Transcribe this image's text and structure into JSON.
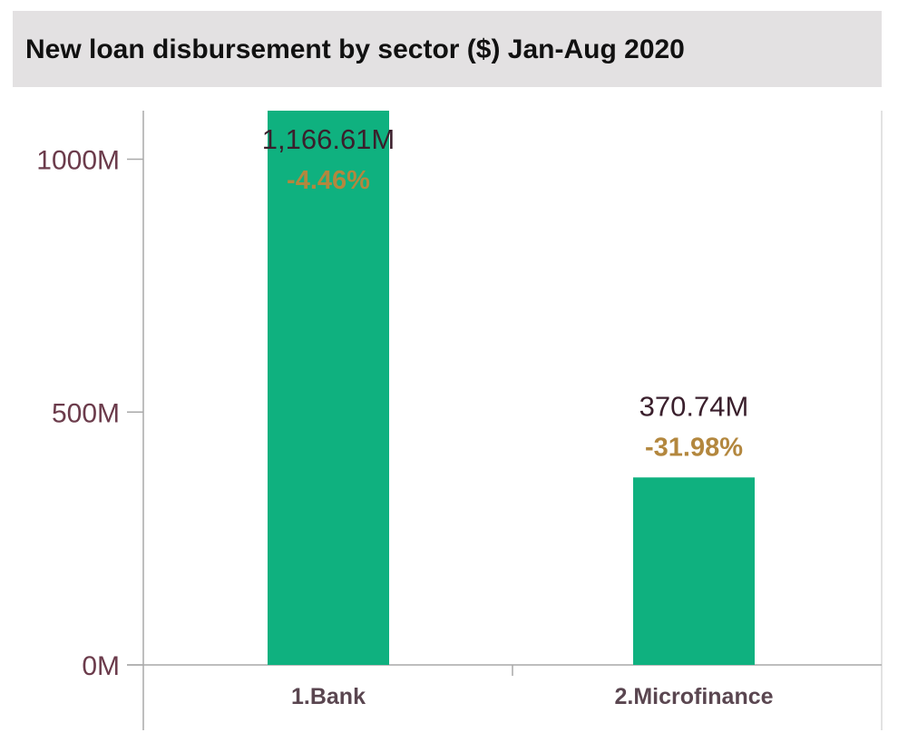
{
  "chart_data": {
    "type": "bar",
    "title": "New loan disbursement by sector ($) Jan-Aug 2020",
    "categories": [
      "1.Bank",
      "2.Microfinance"
    ],
    "values": [
      1166.61,
      370.74
    ],
    "value_labels": [
      "1,166.61M",
      "370.74M"
    ],
    "change_labels": [
      "-4.46%",
      "-31.98%"
    ],
    "yticks": [
      0,
      500,
      1000
    ],
    "ytick_labels": [
      "0M",
      "500M",
      "1000M"
    ],
    "ylim": [
      0,
      1100
    ],
    "xlabel": "",
    "ylabel": "",
    "grid": false,
    "legend": "none",
    "colors": {
      "bar": "#0fb17f",
      "value_text": "#3a1f2c",
      "change_text": "#b3873e",
      "axis": "#a9a9a9",
      "title_bg": "#e3e1e2"
    }
  }
}
